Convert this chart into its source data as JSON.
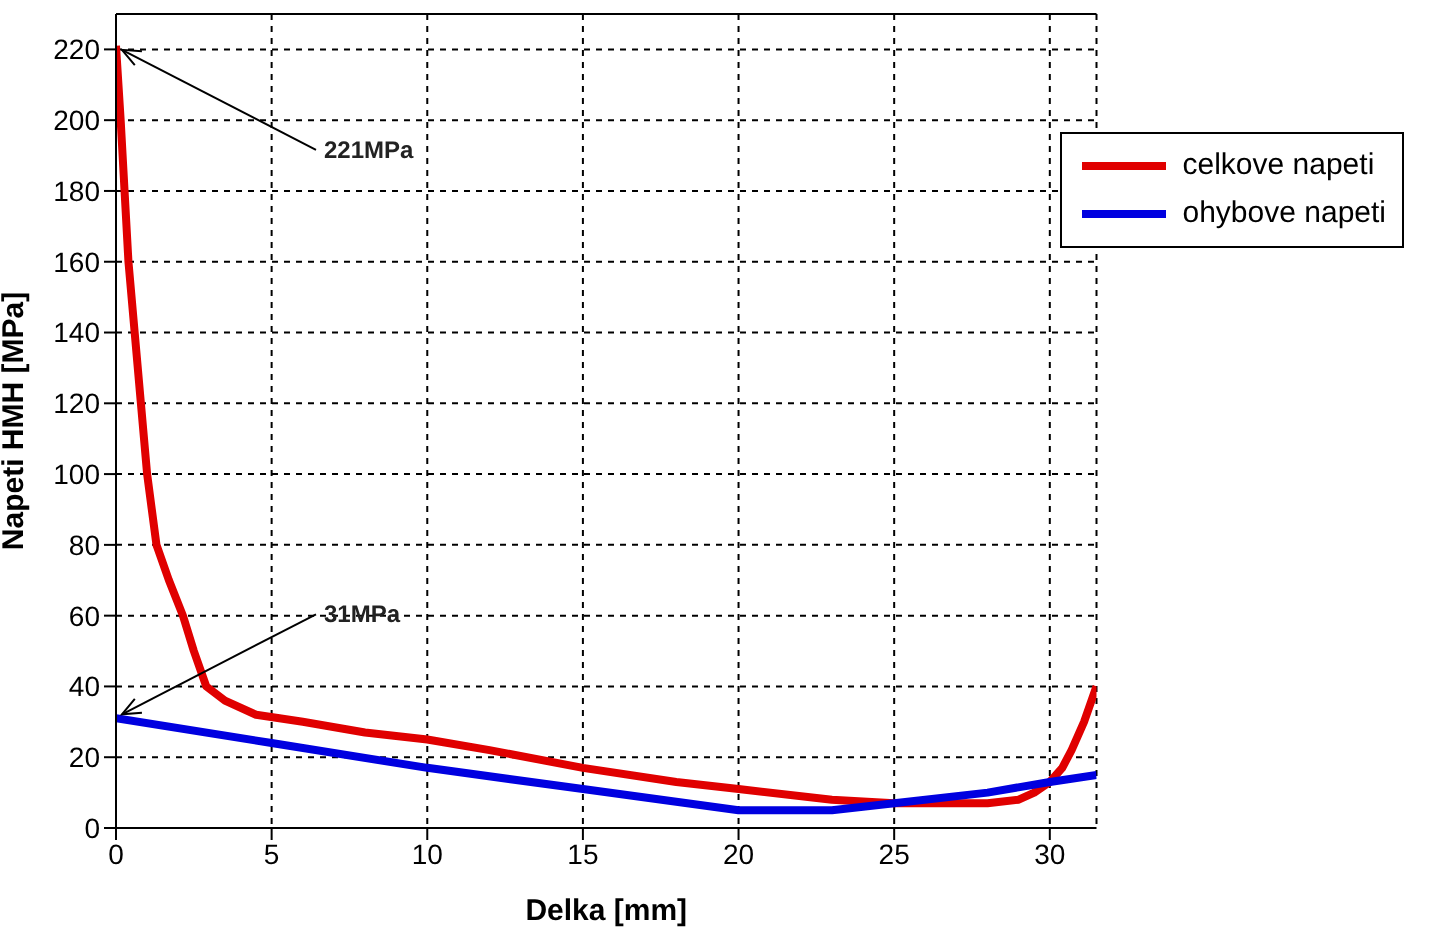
{
  "chart_data": {
    "type": "line",
    "xlabel": "Delka [mm]",
    "ylabel": "Napeti HMH [MPa]",
    "xlim": [
      0,
      31.5
    ],
    "xticks": [
      0,
      5,
      10,
      15,
      20,
      25,
      30
    ],
    "ylim": [
      0,
      230
    ],
    "yticks": [
      0,
      20,
      40,
      60,
      80,
      100,
      120,
      140,
      160,
      180,
      200,
      220
    ],
    "grid": true,
    "legend": "top right",
    "line_style": "solid",
    "marker": "none",
    "series": [
      {
        "name": "celkove napeti",
        "color": "#e00000",
        "x": [
          0,
          0.15,
          0.4,
          0.8,
          1.0,
          1.3,
          1.7,
          2.15,
          2.5,
          2.9,
          3.5,
          4.5,
          6,
          8,
          10,
          12,
          15,
          18,
          20,
          23,
          25,
          27,
          28,
          29,
          29.5,
          30,
          30.4,
          30.7,
          31.1,
          31.5
        ],
        "values": [
          221,
          200,
          160,
          120,
          100,
          80,
          70,
          60,
          50,
          40,
          36,
          32,
          30,
          27,
          25,
          22,
          17,
          13,
          11,
          8,
          7,
          7,
          7,
          8,
          10,
          13,
          17,
          22,
          30,
          40
        ]
      },
      {
        "name": "ohybove napeti",
        "color": "#0000e0",
        "x": [
          0,
          5,
          10,
          15,
          20,
          23,
          25,
          28,
          30,
          31.5
        ],
        "values": [
          31,
          24,
          17,
          11,
          5,
          5,
          7,
          10,
          13,
          15
        ]
      }
    ],
    "annotations": [
      {
        "text": "221MPa",
        "x": 0,
        "y": 221
      },
      {
        "text": "31MPa",
        "x": 0,
        "y": 31
      }
    ]
  }
}
